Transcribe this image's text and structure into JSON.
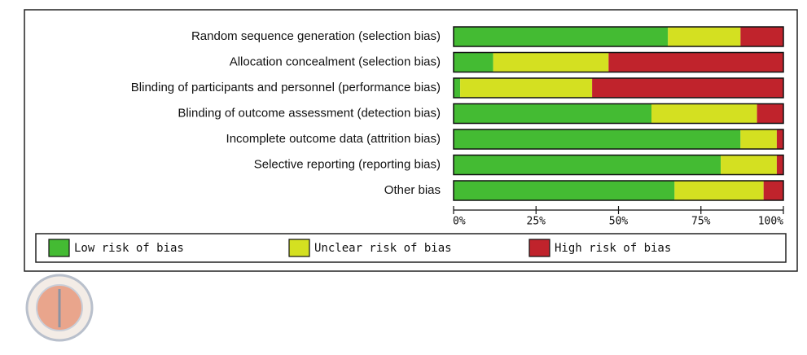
{
  "chart_data": {
    "type": "bar",
    "orientation": "horizontal",
    "stacked": true,
    "categories": [
      "Random sequence generation (selection bias)",
      "Allocation concealment (selection bias)",
      "Blinding of participants and personnel (performance bias)",
      "Blinding of outcome assessment (detection bias)",
      "Incomplete outcome data (attrition bias)",
      "Selective reporting (reporting bias)",
      "Other bias"
    ],
    "series": [
      {
        "name": "Low risk of bias",
        "color": "#44bb33",
        "values": [
          65,
          12,
          2,
          60,
          87,
          81,
          67
        ]
      },
      {
        "name": "Unclear risk of bias",
        "color": "#d4e021",
        "values": [
          22,
          35,
          40,
          32,
          11,
          17,
          27
        ]
      },
      {
        "name": "High risk of bias",
        "color": "#c0232c",
        "values": [
          13,
          53,
          58,
          8,
          2,
          2,
          6
        ]
      }
    ],
    "xlim": [
      0,
      100
    ],
    "xticks": [
      {
        "value": 0,
        "label": "0%"
      },
      {
        "value": 25,
        "label": "25%"
      },
      {
        "value": 50,
        "label": "50%"
      },
      {
        "value": 75,
        "label": "75%"
      },
      {
        "value": 100,
        "label": "100%"
      }
    ],
    "legend": "bottom"
  }
}
